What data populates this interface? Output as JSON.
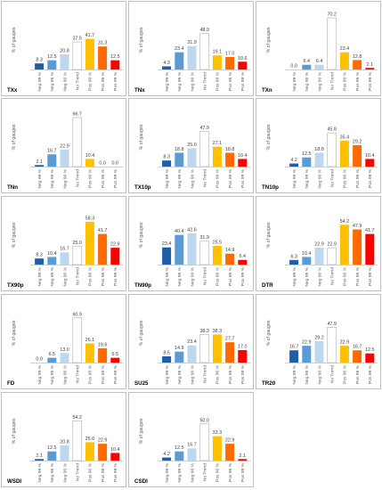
{
  "colors": {
    "neg99": "#1f5fa8",
    "neg95": "#5b9bd5",
    "neg90": "#bdd7ee",
    "notrend": "#ffffff",
    "pos90": "#ffc000",
    "pos95": "#ff6a00",
    "pos99": "#ff0000"
  },
  "chart_data": [
    {
      "type": "bar",
      "title": "TXx",
      "ylabel": "% of gauges",
      "categories": [
        "Neg 99 %",
        "Neg 95 %",
        "Neg 90 %",
        "No Trend",
        "Pos 90 %",
        "Pos 95 %",
        "Pos 99 %"
      ],
      "values": [
        8.3,
        12.5,
        20.8,
        37.5,
        41.7,
        31.3,
        12.5
      ],
      "labels": [
        "8.3",
        "12.5",
        "20.8",
        "37.5",
        "41.7",
        "31.3",
        "12.5"
      ]
    },
    {
      "type": "bar",
      "title": "TNx",
      "ylabel": "% of gauges",
      "categories": [
        "Neg 99 %",
        "Neg 95 %",
        "Neg 90 %",
        "No Trend",
        "Pos 90 %",
        "Pos 95 %",
        "Pos 99 %"
      ],
      "values": [
        4.3,
        23.4,
        31.9,
        48.9,
        19.1,
        17.0,
        10.6
      ],
      "labels": [
        "4.3",
        "23.4",
        "31.9",
        "48.9",
        "19.1",
        "17.0",
        "10.6"
      ]
    },
    {
      "type": "bar",
      "title": "TXn",
      "ylabel": "% of gauges",
      "categories": [
        "Neg 99 %",
        "Neg 95 %",
        "Neg 90 %",
        "No Trend",
        "Pos 90 %",
        "Pos 95 %",
        "Pos 99 %"
      ],
      "values": [
        0.0,
        6.4,
        6.4,
        70.2,
        23.4,
        12.8,
        2.1
      ],
      "labels": [
        "0.0",
        "6.4",
        "6.4",
        "70.2",
        "23.4",
        "12.8",
        "2.1"
      ]
    },
    {
      "type": "bar",
      "title": "TNn",
      "ylabel": "% of gauges",
      "categories": [
        "Neg 99 %",
        "Neg 95 %",
        "Neg 90 %",
        "No Trend",
        "Pos 90 %",
        "Pos 95 %",
        "Pos 99 %"
      ],
      "values": [
        2.1,
        16.7,
        22.9,
        66.7,
        10.4,
        0.0,
        0.0
      ],
      "labels": [
        "2.1",
        "16.7",
        "22.9",
        "66.7",
        "10.4",
        "0.0",
        "0.0"
      ]
    },
    {
      "type": "bar",
      "title": "TX10p",
      "ylabel": "% of gauges",
      "categories": [
        "Neg 99 %",
        "Neg 95 %",
        "Neg 90 %",
        "No Trend",
        "Pos 90 %",
        "Pos 95 %",
        "Pos 99 %"
      ],
      "values": [
        8.3,
        18.8,
        25.0,
        47.9,
        27.1,
        18.8,
        10.4
      ],
      "labels": [
        "8.3",
        "18.8",
        "25.0",
        "47.9",
        "27.1",
        "18.8",
        "10.4"
      ]
    },
    {
      "type": "bar",
      "title": "TN10p",
      "ylabel": "% of gauges",
      "categories": [
        "Neg 99 %",
        "Neg 95 %",
        "Neg 90 %",
        "No Trend",
        "Pos 90 %",
        "Pos 95 %",
        "Pos 99 %"
      ],
      "values": [
        4.2,
        12.5,
        18.8,
        45.8,
        35.4,
        29.2,
        10.4
      ],
      "labels": [
        "4.2",
        "12.5",
        "18.8",
        "45.8",
        "35.4",
        "29.2",
        "10.4"
      ]
    },
    {
      "type": "bar",
      "title": "TX90p",
      "ylabel": "% of gauges",
      "categories": [
        "Neg 99 %",
        "Neg 95 %",
        "Neg 90 %",
        "No Trend",
        "Pos 90 %",
        "Pos 95 %",
        "Pos 99 %"
      ],
      "values": [
        8.3,
        10.4,
        16.7,
        25.0,
        58.3,
        41.7,
        22.9
      ],
      "labels": [
        "8.3",
        "10.4",
        "16.7",
        "25.0",
        "58.3",
        "41.7",
        "22.9"
      ]
    },
    {
      "type": "bar",
      "title": "TN90p",
      "ylabel": "% of gauges",
      "categories": [
        "Neg 99 %",
        "Neg 95 %",
        "Neg 90 %",
        "No Trend",
        "Pos 90 %",
        "Pos 95 %",
        "Pos 99 %"
      ],
      "values": [
        23.4,
        40.4,
        42.6,
        31.9,
        25.5,
        14.9,
        6.4
      ],
      "labels": [
        "23.4",
        "40.4",
        "42.6",
        "31.9",
        "25.5",
        "14.9",
        "6.4"
      ]
    },
    {
      "type": "bar",
      "title": "DTR",
      "ylabel": "% of gauges",
      "categories": [
        "Neg 99 %",
        "Neg 95 %",
        "Neg 90 %",
        "No Trend",
        "Pos 90 %",
        "Pos 95 %",
        "Pos 99 %"
      ],
      "values": [
        6.3,
        10.4,
        22.9,
        22.9,
        54.2,
        47.9,
        41.7
      ],
      "labels": [
        "6.3",
        "10.4",
        "22.9",
        "22.9",
        "54.2",
        "47.9",
        "41.7"
      ]
    },
    {
      "type": "bar",
      "title": "FD",
      "ylabel": "% of gauges",
      "categories": [
        "Neg 99 %",
        "Neg 95 %",
        "Neg 90 %",
        "No Trend",
        "Pos 90 %",
        "Pos 95 %",
        "Pos 99 %"
      ],
      "values": [
        0.0,
        6.5,
        13.0,
        60.9,
        26.1,
        19.6,
        6.5
      ],
      "labels": [
        "0.0",
        "6.5",
        "13.0",
        "60.9",
        "26.1",
        "19.6",
        "6.5"
      ]
    },
    {
      "type": "bar",
      "title": "SU25",
      "ylabel": "% of gauges",
      "categories": [
        "Neg 99 %",
        "Neg 95 %",
        "Neg 90 %",
        "No Trend",
        "Pos 90 %",
        "Pos 95 %",
        "Pos 99 %"
      ],
      "values": [
        8.5,
        14.9,
        23.4,
        38.3,
        38.3,
        27.7,
        17.0
      ],
      "labels": [
        "8.5",
        "14.9",
        "23.4",
        "38.3",
        "38.3",
        "27.7",
        "17.0"
      ]
    },
    {
      "type": "bar",
      "title": "TR20",
      "ylabel": "% of gauges",
      "categories": [
        "Neg 99 %",
        "Neg 95 %",
        "Neg 90 %",
        "No Trend",
        "Pos 90 %",
        "Pos 95 %",
        "Pos 99 %"
      ],
      "values": [
        16.7,
        22.9,
        29.2,
        47.9,
        22.9,
        16.7,
        12.5
      ],
      "labels": [
        "16.7",
        "22.9",
        "29.2",
        "47.9",
        "22.9",
        "16.7",
        "12.5"
      ]
    },
    {
      "type": "bar",
      "title": "WSDI",
      "ylabel": "% of gauges",
      "categories": [
        "Neg 99 %",
        "Neg 95 %",
        "Neg 90 %",
        "No Trend",
        "Pos 90 %",
        "Pos 95 %",
        "Pos 99 %"
      ],
      "values": [
        2.1,
        12.5,
        20.8,
        54.2,
        25.0,
        22.9,
        10.4
      ],
      "labels": [
        "2.1",
        "12.5",
        "20.8",
        "54.2",
        "25.0",
        "22.9",
        "10.4"
      ]
    },
    {
      "type": "bar",
      "title": "CSDI",
      "ylabel": "% of gauges",
      "categories": [
        "Neg 99 %",
        "Neg 95 %",
        "Neg 90 %",
        "No Trend",
        "Pos 90 %",
        "Pos 95 %",
        "Pos 99 %"
      ],
      "values": [
        4.2,
        12.5,
        16.7,
        50.0,
        33.3,
        22.9,
        2.1
      ],
      "labels": [
        "4.2",
        "12.5",
        "16.7",
        "50.0",
        "33.3",
        "22.9",
        "2.1"
      ]
    }
  ]
}
